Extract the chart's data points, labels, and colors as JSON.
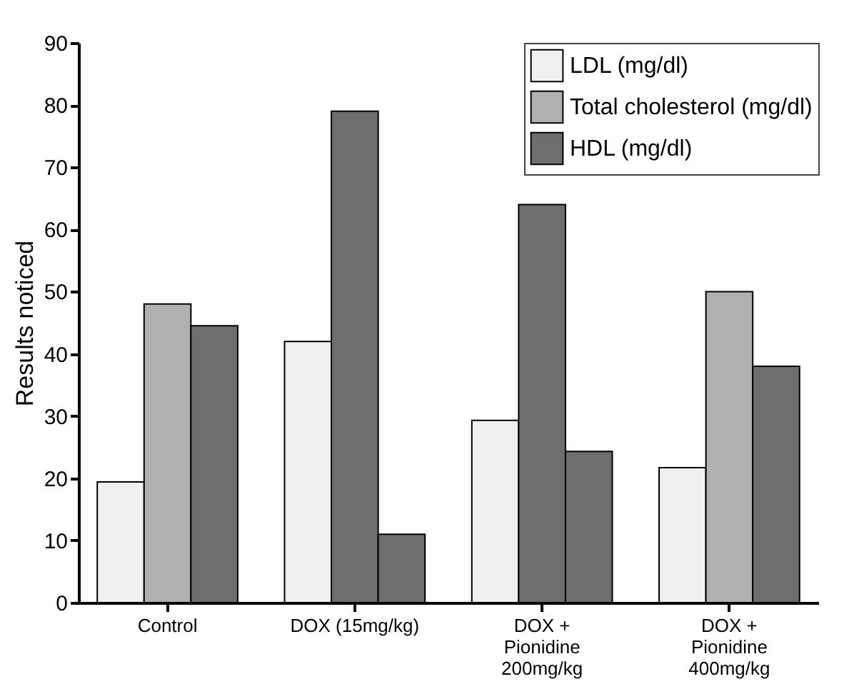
{
  "chart_data": {
    "type": "bar",
    "ylabel": "Results noticed",
    "categories": [
      "Control",
      "DOX (15mg/kg)",
      "DOX +\nPionidine\n200mg/kg",
      "DOX +\nPionidine\n400mg/kg"
    ],
    "series": [
      {
        "name": "LDL (mg/dl)",
        "color": "#f0f0f0",
        "values": [
          19.4,
          42,
          29.3,
          21.7
        ]
      },
      {
        "name": "Total cholesterol (mg/dl)",
        "color": "#b0b0b0",
        "colors": [
          "#b0b0b0",
          "#6e6e6e",
          "#6e6e6e",
          "#b0b0b0"
        ],
        "values": [
          48,
          79,
          64,
          50
        ]
      },
      {
        "name": "HDL (mg/dl)",
        "color": "#6e6e6e",
        "values": [
          44.5,
          11,
          24.3,
          38
        ]
      }
    ],
    "ylim": [
      0,
      90
    ],
    "yticks": [
      0,
      10,
      20,
      30,
      40,
      50,
      60,
      70,
      80,
      90
    ],
    "grid": false,
    "legend": "top right"
  }
}
